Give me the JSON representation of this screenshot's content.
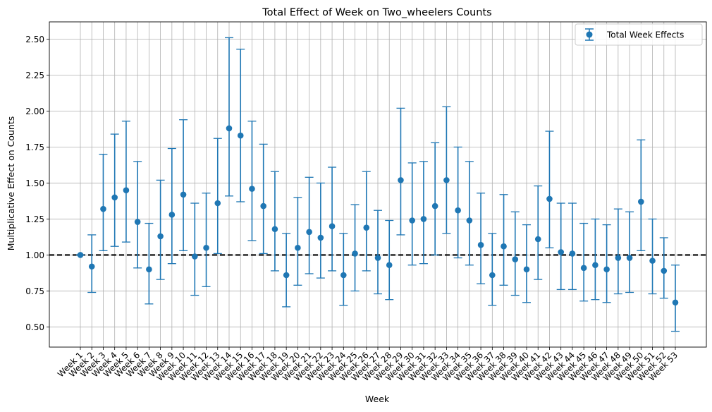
{
  "chart_data": {
    "type": "scatter",
    "title": "Total Effect of Week on Two_wheelers Counts",
    "xlabel": "Week",
    "ylabel": "Multiplicative Effect on Counts",
    "ylim": [
      0.36,
      2.62
    ],
    "yticks": [
      "0.50",
      "0.75",
      "1.00",
      "1.25",
      "1.50",
      "1.75",
      "2.00",
      "2.25",
      "2.50"
    ],
    "grid": true,
    "legend_position": "top-right",
    "reference_line": {
      "y": 1.0,
      "style": "dashed",
      "color": "#000000"
    },
    "series": [
      {
        "name": "Total Week Effects",
        "color": "#1f77b4",
        "categories": [
          "Week 1",
          "Week 2",
          "Week 3",
          "Week 4",
          "Week 5",
          "Week 6",
          "Week 7",
          "Week 8",
          "Week 9",
          "Week 10",
          "Week 11",
          "Week 12",
          "Week 13",
          "Week 14",
          "Week 15",
          "Week 16",
          "Week 17",
          "Week 18",
          "Week 19",
          "Week 20",
          "Week 21",
          "Week 22",
          "Week 23",
          "Week 24",
          "Week 25",
          "Week 26",
          "Week 27",
          "Week 28",
          "Week 29",
          "Week 30",
          "Week 31",
          "Week 32",
          "Week 33",
          "Week 34",
          "Week 35",
          "Week 36",
          "Week 37",
          "Week 38",
          "Week 39",
          "Week 40",
          "Week 41",
          "Week 42",
          "Week 43",
          "Week 44",
          "Week 45",
          "Week 46",
          "Week 47",
          "Week 48",
          "Week 49",
          "Week 50",
          "Week 51",
          "Week 52",
          "Week 53"
        ],
        "values": [
          1.0,
          0.92,
          1.32,
          1.4,
          1.45,
          1.23,
          0.9,
          1.13,
          1.28,
          1.42,
          0.99,
          1.05,
          1.36,
          1.88,
          1.83,
          1.46,
          1.34,
          1.18,
          0.86,
          1.05,
          1.16,
          1.12,
          1.2,
          0.86,
          1.01,
          1.19,
          0.98,
          0.93,
          1.52,
          1.24,
          1.25,
          1.34,
          1.52,
          1.31,
          1.24,
          1.07,
          0.86,
          1.06,
          0.97,
          0.9,
          1.11,
          1.39,
          1.02,
          1.01,
          0.91,
          0.93,
          0.9,
          0.98,
          0.98,
          1.37,
          0.96,
          0.89,
          0.67
        ],
        "lower": [
          1.0,
          0.74,
          1.03,
          1.06,
          1.09,
          0.91,
          0.66,
          0.83,
          0.94,
          1.03,
          0.72,
          0.78,
          1.01,
          1.41,
          1.37,
          1.1,
          1.01,
          0.89,
          0.64,
          0.79,
          0.87,
          0.84,
          0.89,
          0.65,
          0.75,
          0.89,
          0.73,
          0.69,
          1.14,
          0.93,
          0.94,
          1.0,
          1.15,
          0.98,
          0.93,
          0.8,
          0.65,
          0.79,
          0.72,
          0.67,
          0.83,
          1.05,
          0.76,
          0.76,
          0.68,
          0.69,
          0.67,
          0.73,
          0.74,
          1.03,
          0.73,
          0.7,
          0.47
        ],
        "upper": [
          1.0,
          1.14,
          1.7,
          1.84,
          1.93,
          1.65,
          1.22,
          1.52,
          1.74,
          1.94,
          1.36,
          1.43,
          1.81,
          2.51,
          2.43,
          1.93,
          1.77,
          1.58,
          1.15,
          1.4,
          1.54,
          1.5,
          1.61,
          1.15,
          1.35,
          1.58,
          1.31,
          1.24,
          2.02,
          1.64,
          1.65,
          1.78,
          2.03,
          1.75,
          1.65,
          1.43,
          1.15,
          1.42,
          1.3,
          1.21,
          1.48,
          1.86,
          1.36,
          1.36,
          1.22,
          1.25,
          1.21,
          1.32,
          1.3,
          1.8,
          1.25,
          1.12,
          0.93
        ]
      }
    ]
  }
}
